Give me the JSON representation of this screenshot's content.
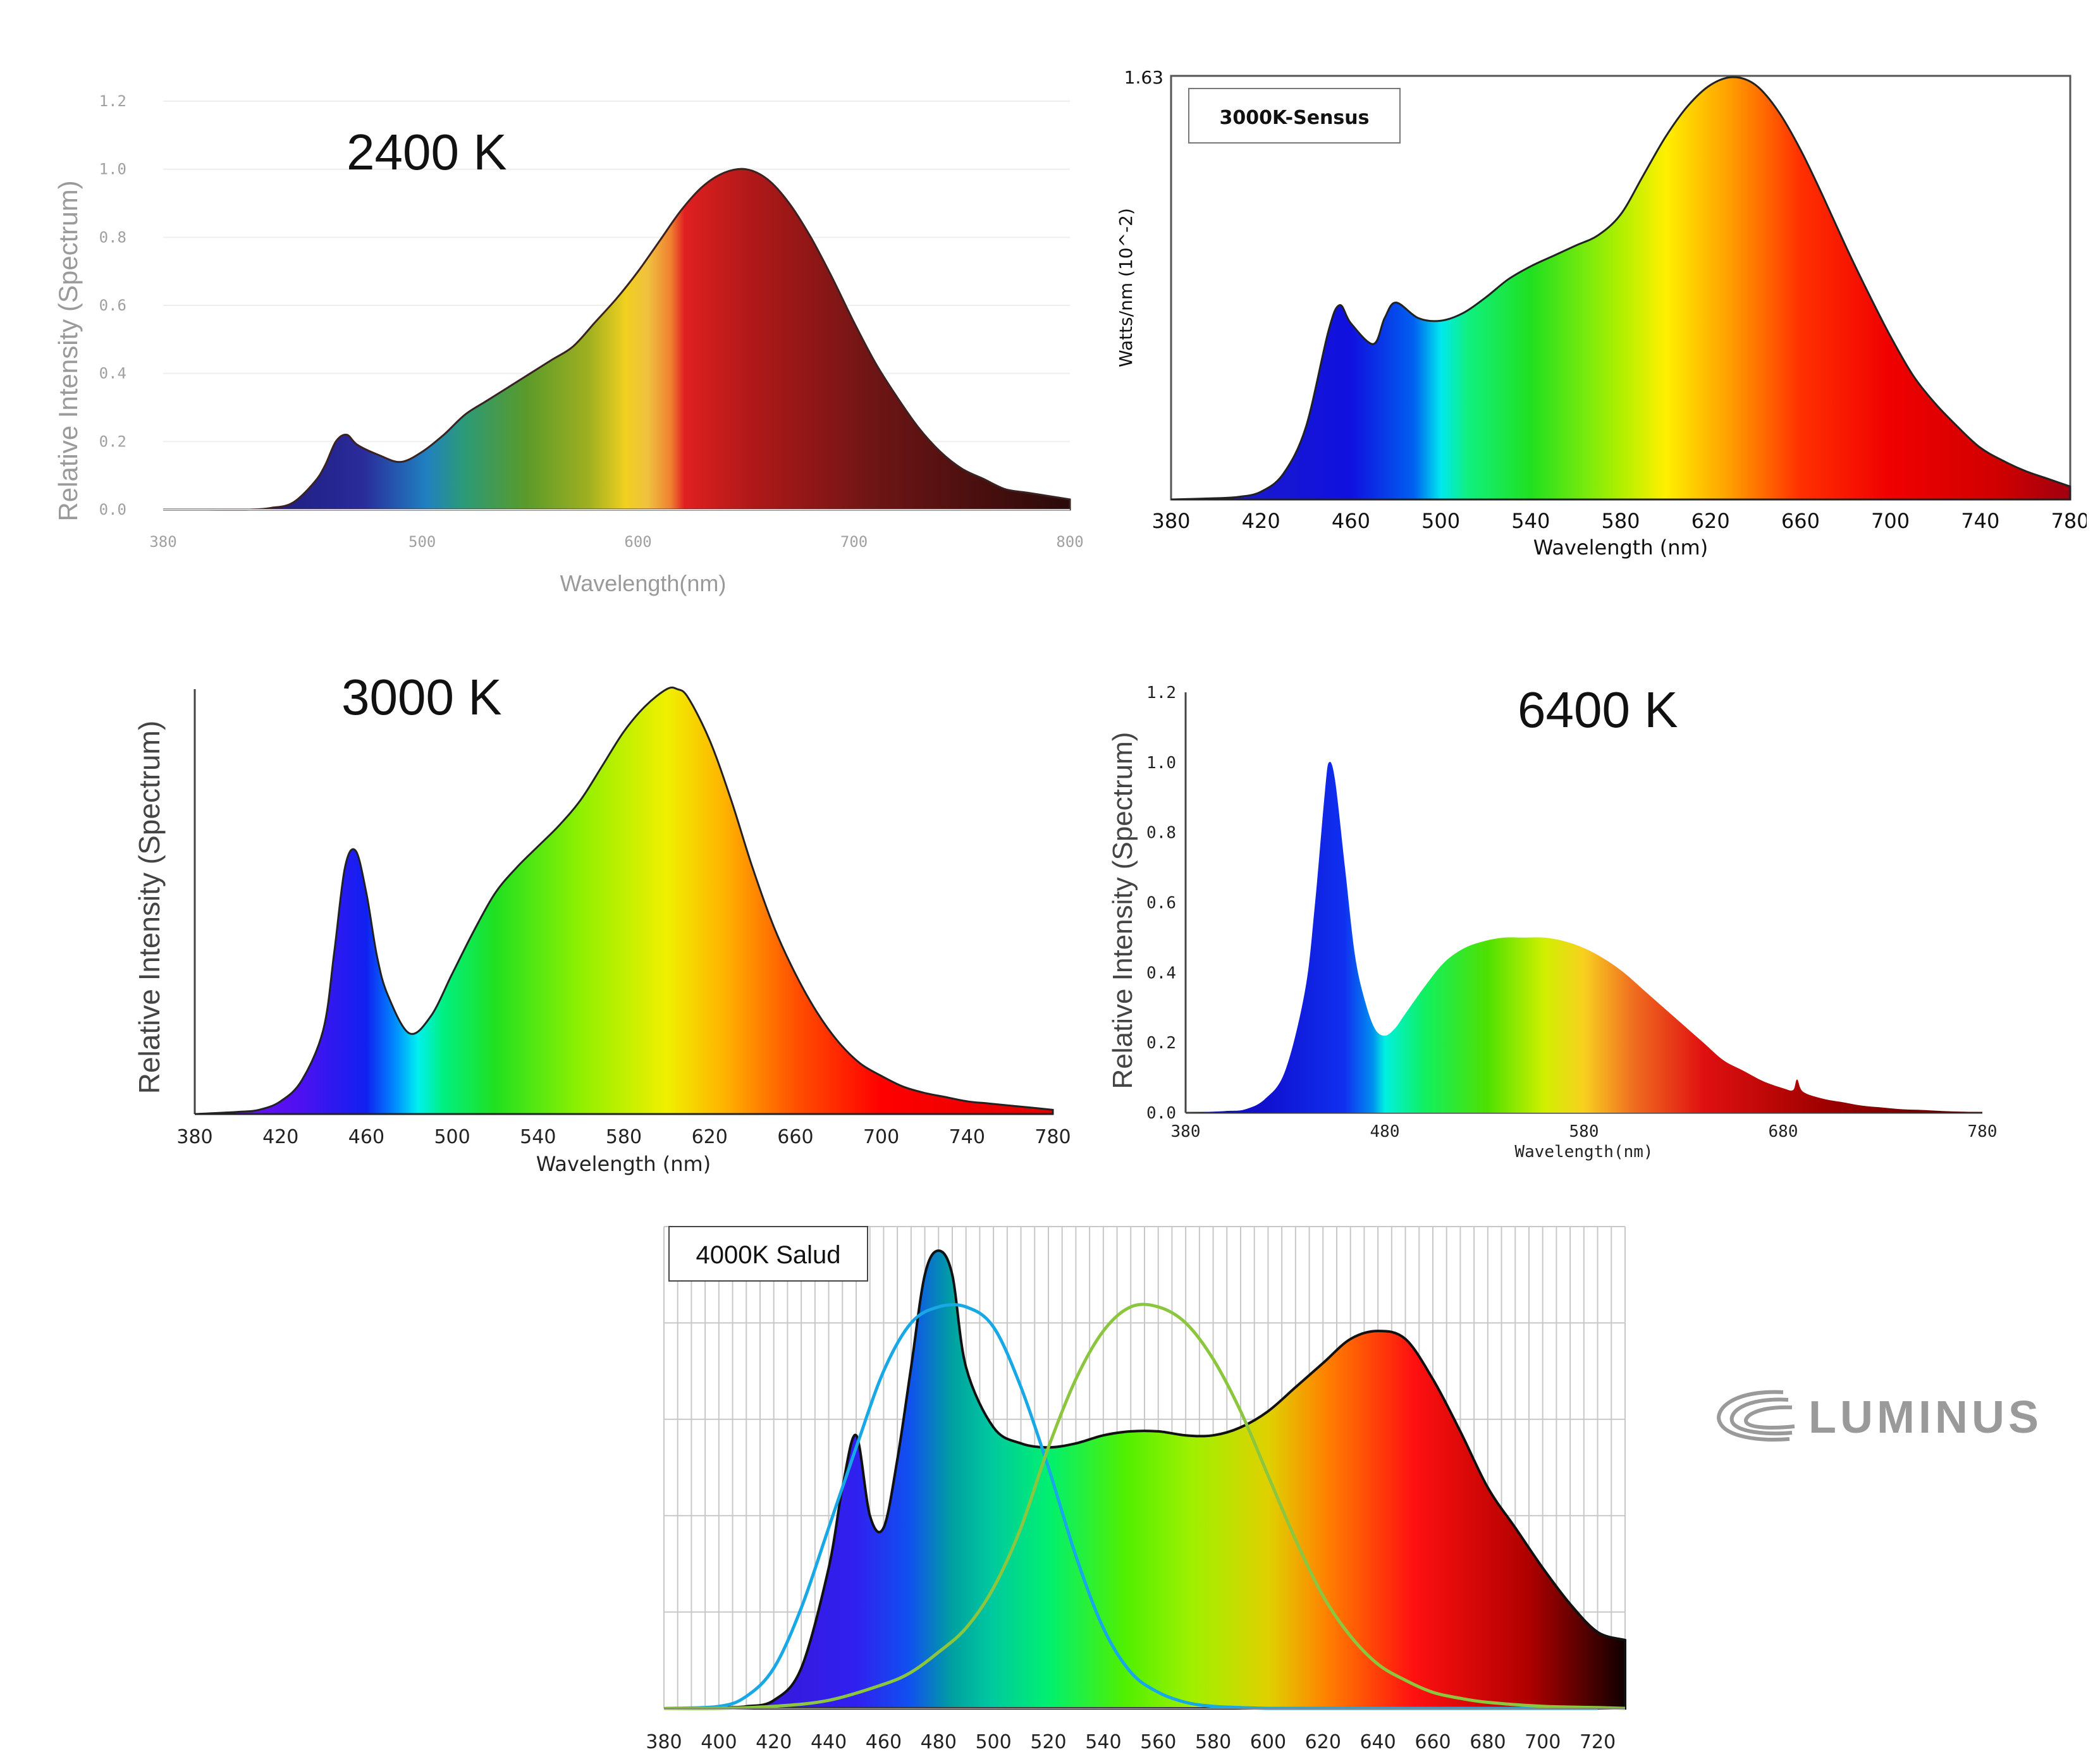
{
  "chart_data": [
    {
      "type": "area",
      "title": "2400 K",
      "xlabel": "Wavelength(nm)",
      "ylabel": "Relative Intensity (Spectrum)",
      "xlim": [
        380,
        800
      ],
      "ylim": [
        0,
        1.2
      ],
      "xticks": [
        "380",
        "500",
        "600",
        "700",
        "800"
      ],
      "yticks": [
        "0.0",
        "0.2",
        "0.4",
        "0.6",
        "0.8",
        "1.0",
        "1.2"
      ],
      "x": [
        380,
        400,
        420,
        430,
        440,
        450,
        455,
        460,
        465,
        470,
        480,
        490,
        500,
        510,
        520,
        530,
        540,
        550,
        560,
        570,
        580,
        590,
        600,
        610,
        620,
        630,
        640,
        650,
        660,
        670,
        680,
        690,
        700,
        710,
        720,
        730,
        740,
        750,
        760,
        770,
        780,
        790,
        800
      ],
      "values": [
        0,
        0,
        0,
        0.005,
        0.02,
        0.08,
        0.13,
        0.2,
        0.22,
        0.19,
        0.16,
        0.14,
        0.17,
        0.22,
        0.28,
        0.32,
        0.36,
        0.4,
        0.44,
        0.48,
        0.55,
        0.62,
        0.7,
        0.79,
        0.88,
        0.95,
        0.99,
        1.0,
        0.97,
        0.9,
        0.8,
        0.68,
        0.55,
        0.43,
        0.33,
        0.24,
        0.17,
        0.12,
        0.09,
        0.06,
        0.05,
        0.04,
        0.03
      ]
    },
    {
      "type": "area",
      "title": "3000K-Sensus",
      "xlabel": "Wavelength (nm)",
      "ylabel": "Watts/nm (10^-2)",
      "xlim": [
        380,
        780
      ],
      "ylim": [
        0,
        1.63
      ],
      "ytick_label": "1.63",
      "xticks": [
        "380",
        "420",
        "460",
        "500",
        "540",
        "580",
        "620",
        "660",
        "700",
        "740",
        "780"
      ],
      "x": [
        380,
        400,
        410,
        420,
        430,
        440,
        450,
        455,
        460,
        470,
        475,
        480,
        490,
        500,
        510,
        520,
        530,
        540,
        550,
        560,
        570,
        580,
        590,
        600,
        610,
        620,
        630,
        640,
        650,
        660,
        670,
        680,
        690,
        700,
        710,
        720,
        730,
        740,
        750,
        760,
        770,
        780
      ],
      "values": [
        0,
        0.005,
        0.01,
        0.03,
        0.1,
        0.28,
        0.65,
        0.75,
        0.68,
        0.6,
        0.7,
        0.76,
        0.7,
        0.69,
        0.72,
        0.78,
        0.85,
        0.9,
        0.94,
        0.98,
        1.02,
        1.1,
        1.25,
        1.4,
        1.52,
        1.6,
        1.63,
        1.6,
        1.5,
        1.35,
        1.17,
        0.98,
        0.8,
        0.63,
        0.48,
        0.37,
        0.28,
        0.2,
        0.15,
        0.11,
        0.08,
        0.05
      ]
    },
    {
      "type": "area",
      "title": "3000 K",
      "xlabel": "Wavelength (nm)",
      "ylabel": "Relative Intensity (Spectrum)",
      "xlim": [
        380,
        780
      ],
      "ylim": [
        0,
        1.0
      ],
      "xticks": [
        "380",
        "420",
        "460",
        "500",
        "540",
        "580",
        "620",
        "660",
        "700",
        "740",
        "780"
      ],
      "x": [
        380,
        400,
        410,
        420,
        430,
        440,
        445,
        450,
        455,
        460,
        465,
        470,
        480,
        490,
        500,
        510,
        520,
        530,
        540,
        550,
        560,
        570,
        580,
        590,
        600,
        605,
        610,
        620,
        630,
        640,
        650,
        660,
        670,
        680,
        690,
        700,
        710,
        720,
        730,
        740,
        750,
        760,
        770,
        780
      ],
      "values": [
        0,
        0.005,
        0.01,
        0.03,
        0.08,
        0.2,
        0.38,
        0.58,
        0.62,
        0.52,
        0.37,
        0.28,
        0.19,
        0.23,
        0.33,
        0.43,
        0.52,
        0.58,
        0.63,
        0.68,
        0.74,
        0.82,
        0.9,
        0.96,
        1.0,
        1.0,
        0.98,
        0.88,
        0.74,
        0.58,
        0.44,
        0.33,
        0.24,
        0.17,
        0.12,
        0.09,
        0.065,
        0.05,
        0.04,
        0.03,
        0.025,
        0.02,
        0.015,
        0.01
      ]
    },
    {
      "type": "area",
      "title": "6400 K",
      "xlabel": "Wavelength(nm)",
      "ylabel": "Relative Intensity (Spectrum)",
      "xlim": [
        380,
        780
      ],
      "ylim": [
        0,
        1.2
      ],
      "xticks": [
        "380",
        "480",
        "580",
        "680",
        "780"
      ],
      "yticks": [
        "0.0",
        "0.2",
        "0.4",
        "0.6",
        "0.8",
        "1.0",
        "1.2"
      ],
      "x": [
        380,
        400,
        410,
        420,
        430,
        440,
        445,
        450,
        452,
        455,
        460,
        465,
        470,
        475,
        480,
        485,
        490,
        500,
        510,
        520,
        530,
        540,
        550,
        560,
        570,
        580,
        590,
        600,
        610,
        620,
        630,
        640,
        650,
        660,
        670,
        680,
        685,
        687,
        690,
        700,
        710,
        720,
        730,
        740,
        750,
        760,
        770,
        780
      ],
      "values": [
        0,
        0.005,
        0.01,
        0.04,
        0.12,
        0.35,
        0.6,
        0.92,
        1.0,
        0.95,
        0.7,
        0.45,
        0.32,
        0.24,
        0.22,
        0.24,
        0.28,
        0.36,
        0.43,
        0.47,
        0.49,
        0.5,
        0.5,
        0.5,
        0.49,
        0.47,
        0.44,
        0.4,
        0.35,
        0.3,
        0.25,
        0.2,
        0.15,
        0.12,
        0.09,
        0.07,
        0.065,
        0.095,
        0.06,
        0.04,
        0.03,
        0.02,
        0.015,
        0.01,
        0.008,
        0.005,
        0.003,
        0.002
      ]
    },
    {
      "type": "area",
      "title": "4000K Salud",
      "xlim": [
        380,
        730
      ],
      "ylim": [
        0,
        1.2
      ],
      "xticks": [
        "380",
        "400",
        "420",
        "440",
        "460",
        "480",
        "500",
        "520",
        "540",
        "560",
        "580",
        "600",
        "620",
        "640",
        "660",
        "680",
        "700",
        "720"
      ],
      "x": [
        380,
        390,
        400,
        410,
        420,
        430,
        440,
        445,
        450,
        455,
        460,
        465,
        470,
        475,
        480,
        485,
        490,
        500,
        510,
        520,
        530,
        540,
        550,
        560,
        570,
        580,
        590,
        600,
        610,
        620,
        630,
        640,
        650,
        660,
        670,
        680,
        690,
        700,
        710,
        720,
        730
      ],
      "values": [
        0,
        0,
        0.002,
        0.005,
        0.02,
        0.1,
        0.35,
        0.55,
        0.68,
        0.48,
        0.45,
        0.62,
        0.85,
        1.08,
        1.14,
        1.08,
        0.85,
        0.7,
        0.66,
        0.65,
        0.66,
        0.68,
        0.69,
        0.69,
        0.68,
        0.68,
        0.7,
        0.74,
        0.8,
        0.86,
        0.92,
        0.94,
        0.92,
        0.82,
        0.69,
        0.55,
        0.45,
        0.35,
        0.26,
        0.19,
        0.17
      ],
      "series": [
        {
          "color": "#18a8e6",
          "x": [
            380,
            400,
            410,
            420,
            430,
            440,
            450,
            460,
            470,
            480,
            490,
            500,
            510,
            520,
            530,
            540,
            550,
            560,
            570,
            580,
            590,
            600,
            620,
            640,
            660,
            680,
            700,
            720
          ],
          "values": [
            0,
            0.005,
            0.03,
            0.1,
            0.25,
            0.45,
            0.65,
            0.84,
            0.96,
            1.0,
            1.0,
            0.95,
            0.8,
            0.6,
            0.38,
            0.2,
            0.09,
            0.04,
            0.015,
            0.005,
            0.002,
            0,
            0,
            0,
            0,
            0,
            0,
            0
          ]
        },
        {
          "color": "#8cc63f",
          "x": [
            380,
            400,
            420,
            440,
            460,
            470,
            480,
            490,
            500,
            510,
            520,
            530,
            540,
            550,
            560,
            570,
            580,
            590,
            600,
            610,
            620,
            630,
            640,
            650,
            660,
            670,
            680,
            700,
            720,
            730
          ],
          "values": [
            0,
            0,
            0.005,
            0.02,
            0.06,
            0.09,
            0.14,
            0.2,
            0.3,
            0.45,
            0.65,
            0.82,
            0.94,
            1.0,
            1.0,
            0.96,
            0.87,
            0.74,
            0.58,
            0.42,
            0.28,
            0.18,
            0.11,
            0.07,
            0.04,
            0.025,
            0.015,
            0.005,
            0.002,
            0
          ]
        }
      ]
    }
  ],
  "brand": {
    "logo_text": "LUMINUS",
    "color": "#9a9a9a"
  }
}
